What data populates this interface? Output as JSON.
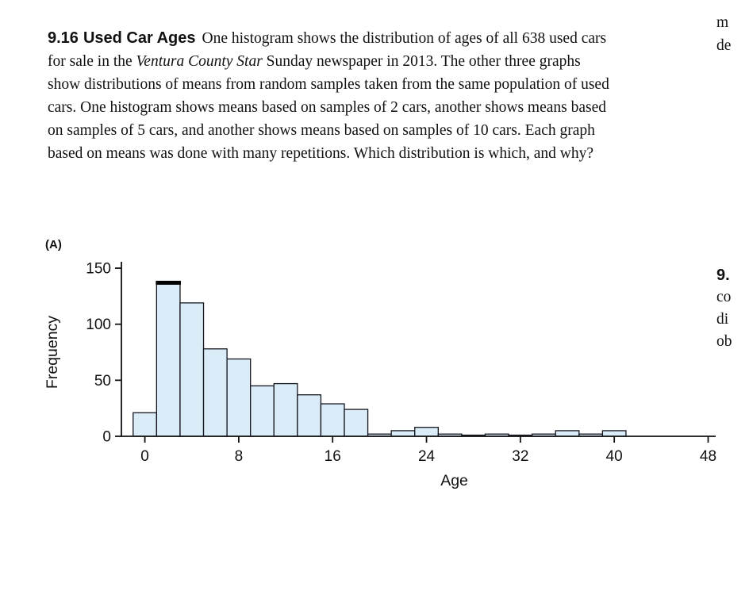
{
  "page": {
    "problem": {
      "number": "9.16",
      "title": "Used Car Ages",
      "text_part1": "One histogram shows the distribution of ages of all 638 used cars for sale in the ",
      "italic_title": "Ventura County Star",
      "text_part2": " Sunday newspaper in 2013. The other three graphs show distributions of means from random samples taken from the same population of used cars. One histogram shows means based on samples of 2 cars, another shows means based on samples of 5 cars, and another shows means based on samples of 10 cars. Each graph based on means was done with many repetitions. Which distribution is which, and why?"
    },
    "figure_label": "(A)",
    "right_fragments": {
      "top1": "m",
      "top2": "de",
      "mid_number": "9.",
      "mid1": "co",
      "mid2": "di",
      "mid3": "ob"
    }
  },
  "chart_data": {
    "type": "bar",
    "title": "",
    "xlabel": "Age",
    "ylabel": "Frequency",
    "bin_width": 2,
    "bin_centers": [
      0,
      2,
      4,
      6,
      8,
      10,
      12,
      14,
      16,
      18,
      20,
      22,
      24,
      26,
      28,
      30,
      32,
      34,
      36,
      38,
      40
    ],
    "values": [
      21,
      137,
      119,
      78,
      69,
      45,
      47,
      37,
      29,
      24,
      2,
      5,
      8,
      2,
      1,
      2,
      1,
      2,
      5,
      2,
      5
    ],
    "x_ticks": [
      0,
      8,
      16,
      24,
      32,
      40,
      48
    ],
    "y_ticks": [
      0,
      50,
      100,
      150
    ],
    "xlim": [
      -2,
      50
    ],
    "ylim": [
      0,
      160
    ],
    "bar_fill": "#d9ecf7",
    "bar_stroke": "#15151f",
    "axis_color": "#111111",
    "emphasized_bin_center": 2,
    "legend": "none",
    "grid": false
  }
}
